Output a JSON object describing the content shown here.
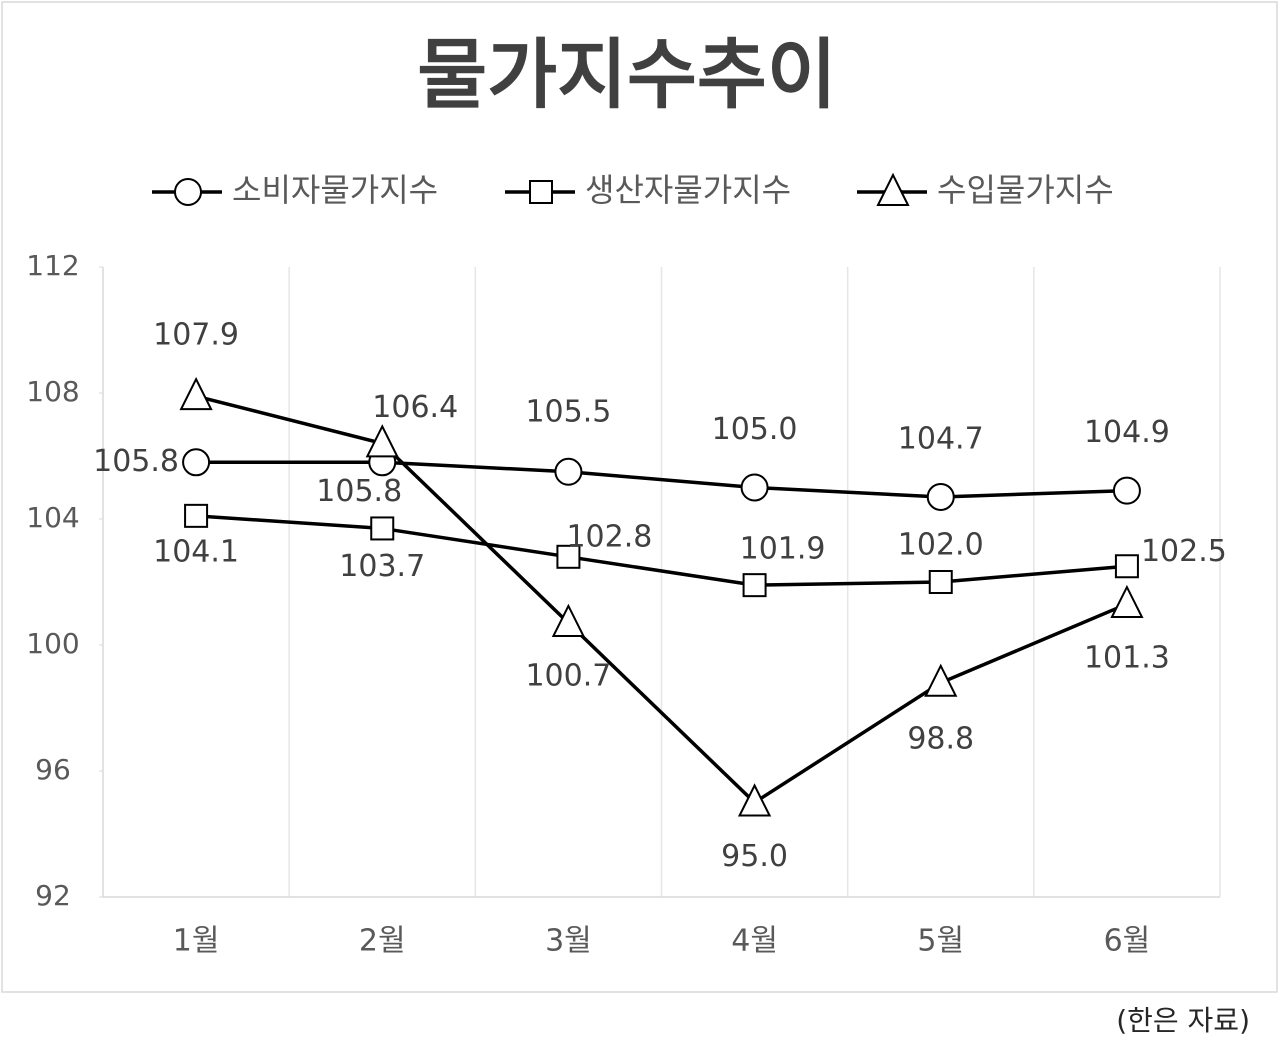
{
  "chart_data": {
    "type": "line",
    "title": "물가지수추이",
    "categories": [
      "1월",
      "2월",
      "3월",
      "4월",
      "5월",
      "6월"
    ],
    "series": [
      {
        "name": "소비자물가지수",
        "color": "#000000",
        "marker": "circle",
        "values": [
          105.8,
          105.8,
          105.5,
          105.0,
          104.7,
          104.9
        ],
        "value_labels": [
          "105.8",
          "105.8",
          "105.5",
          "105.0",
          "104.7",
          "104.9"
        ]
      },
      {
        "name": "생산자물가지수",
        "color": "#000000",
        "marker": "square",
        "values": [
          104.1,
          103.7,
          102.8,
          101.9,
          102.0,
          102.5
        ],
        "value_labels": [
          "104.1",
          "103.7",
          "102.8",
          "101.9",
          "102.0",
          "102.5"
        ]
      },
      {
        "name": "수입물가지수",
        "color": "#000000",
        "marker": "triangle",
        "values": [
          107.9,
          106.4,
          100.7,
          95.0,
          98.8,
          101.3
        ],
        "value_labels": [
          "107.9",
          "106.4",
          "100.7",
          "95.0",
          "98.8",
          "101.3"
        ]
      }
    ],
    "ylim": [
      92,
      112
    ],
    "yticks": [
      92,
      96,
      100,
      104,
      108,
      112
    ],
    "grid": true,
    "legend": "top",
    "source": "(한은 자료)"
  }
}
